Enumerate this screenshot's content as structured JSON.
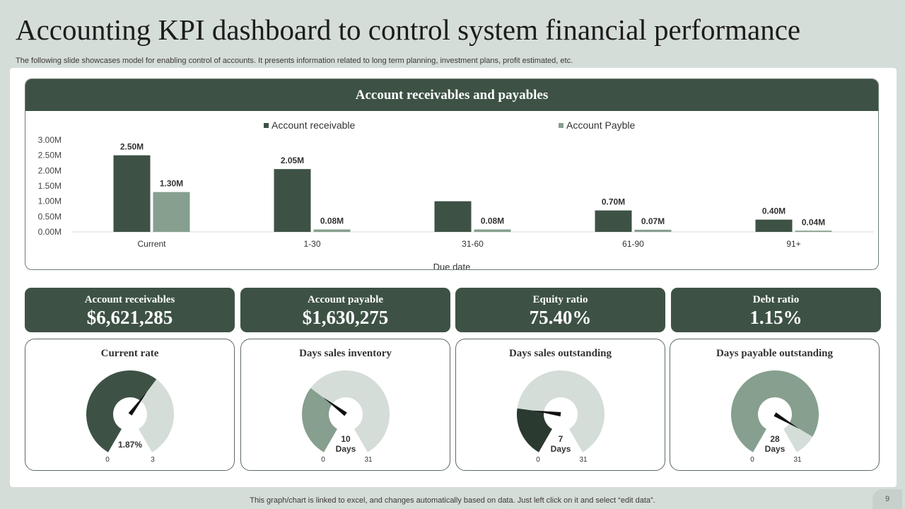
{
  "page": {
    "title": "Accounting KPI dashboard to control system financial performance",
    "subtitle": "The following slide showcases model for enabling control of accounts. It presents information related to long term planning, investment plans, profit estimated, etc.",
    "footer": "This graph/chart is linked to excel,  and changes automatically based on data. Just left click on it and select “edit data”.",
    "page_number": "9"
  },
  "colors": {
    "dark": "#3d5245",
    "light": "#869f8e",
    "pale": "#d4ddd8",
    "darkest": "#2b3a31"
  },
  "chart_data": [
    {
      "type": "bar",
      "title": "Account receivables and payables",
      "xlabel": "Due date",
      "ylabel": "",
      "categories": [
        "Current",
        "1-30",
        "31-60",
        "61-90",
        "91+"
      ],
      "series": [
        {
          "name": "Account receivable",
          "values": [
            2.5,
            2.05,
            1.0,
            0.7,
            0.4
          ],
          "labels": [
            "2.50M",
            "2.05M",
            "",
            "0.70M",
            "0.40M"
          ]
        },
        {
          "name": "Account Payble",
          "values": [
            1.3,
            0.08,
            0.08,
            0.07,
            0.04
          ],
          "labels": [
            "1.30M",
            "0.08M",
            "0.08M",
            "0.07M",
            "0.04M"
          ]
        }
      ],
      "yticks": [
        "0.00M",
        "0.50M",
        "1.00M",
        "1.50M",
        "2.00M",
        "2.50M",
        "3.00M"
      ],
      "ylim": [
        0,
        3.0
      ],
      "legend": "top",
      "grid": false
    },
    {
      "type": "gauge",
      "title": "Current rate",
      "min": 0,
      "max": 3,
      "value": 1.87,
      "min_label": "0",
      "max_label": "3",
      "value_label": "1.87%",
      "unit_label": ""
    },
    {
      "type": "gauge",
      "title": "Days sales inventory",
      "min": 0,
      "max": 31,
      "value": 10,
      "min_label": "0",
      "max_label": "31",
      "value_label": "10",
      "unit_label": "Days"
    },
    {
      "type": "gauge",
      "title": "Days sales outstanding",
      "min": 0,
      "max": 31,
      "value": 7,
      "min_label": "0",
      "max_label": "31",
      "value_label": "7",
      "unit_label": "Days"
    },
    {
      "type": "gauge",
      "title": "Days payable outstanding",
      "min": 0,
      "max": 31,
      "value": 28,
      "min_label": "0",
      "max_label": "31",
      "value_label": "28",
      "unit_label": "Days"
    }
  ],
  "kpis": [
    {
      "label": "Account  receivables",
      "value": "$6,621,285"
    },
    {
      "label": "Account  payable",
      "value": "$1,630,275"
    },
    {
      "label": "Equity  ratio",
      "value": "75.40%"
    },
    {
      "label": "Debt ratio",
      "value": "1.15%"
    }
  ]
}
